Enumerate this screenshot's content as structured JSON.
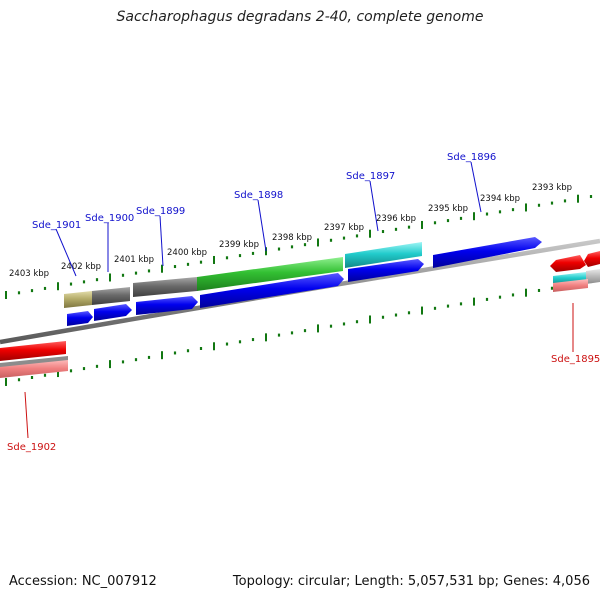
{
  "title": "Saccharophagus degradans 2-40, complete genome",
  "footer": {
    "accession": "Accession: NC_007912",
    "summary": "Topology: circular; Length: 5,057,531 bp; Genes: 4,056"
  },
  "colors": {
    "forward_label": "#1111cc",
    "reverse_label": "#cc1111",
    "tick": "#117711",
    "backbone": "#8a8a8a"
  },
  "tick_labels": [
    "2403 kbp",
    "2402 kbp",
    "2401 kbp",
    "2400 kbp",
    "2399 kbp",
    "2398 kbp",
    "2397 kbp",
    "2396 kbp",
    "2395 kbp",
    "2394 kbp",
    "2393 kbp"
  ],
  "gene_labels": {
    "forward": [
      "Sde_1901",
      "Sde_1900",
      "Sde_1899",
      "Sde_1898",
      "Sde_1897",
      "Sde_1896"
    ],
    "reverse": [
      "Sde_1902",
      "Sde_1895"
    ]
  }
}
